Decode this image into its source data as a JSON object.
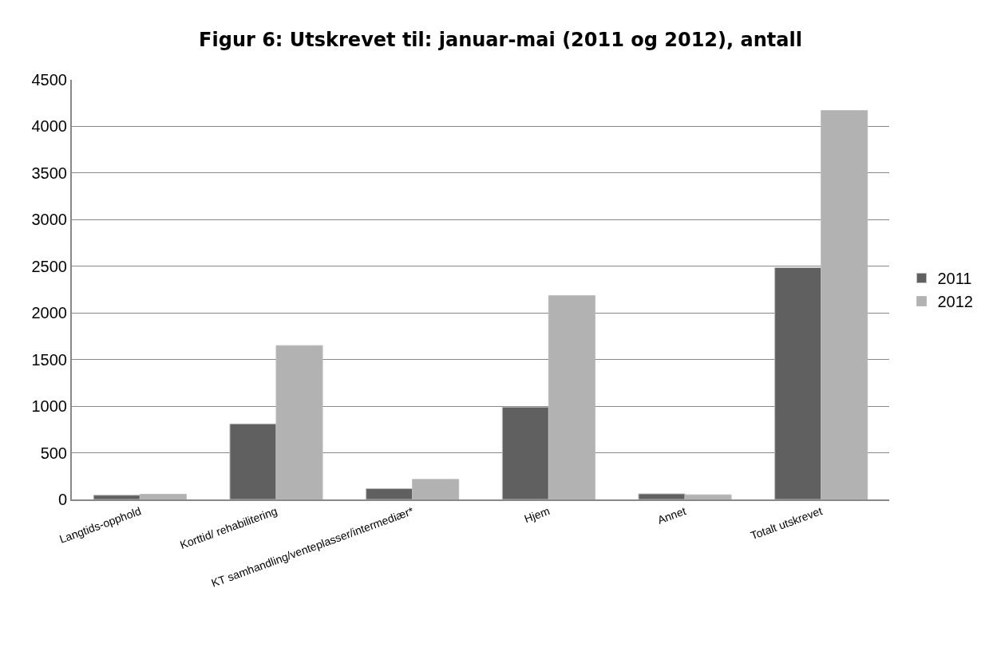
{
  "chart_data": {
    "type": "bar",
    "title": "Figur 6: Utskrevet til: januar-mai (2011 og 2012), antall",
    "categories": [
      "Langtids-opphold",
      "Korttid/ rehabilitering",
      "KT samhandling/venteplasser/intermediær*",
      "Hjem",
      "Annet",
      "Totalt utskrevet"
    ],
    "series": [
      {
        "name": "2011",
        "color": "#606060",
        "values": [
          45,
          810,
          115,
          990,
          60,
          2485
        ]
      },
      {
        "name": "2012",
        "color": "#b2b2b2",
        "values": [
          55,
          1650,
          215,
          2185,
          50,
          4170
        ]
      }
    ],
    "ylim": [
      0,
      4500
    ],
    "yticks": [
      0,
      500,
      1000,
      1500,
      2000,
      2500,
      3000,
      3500,
      4000,
      4500
    ],
    "grid": "y",
    "legend": "right"
  }
}
